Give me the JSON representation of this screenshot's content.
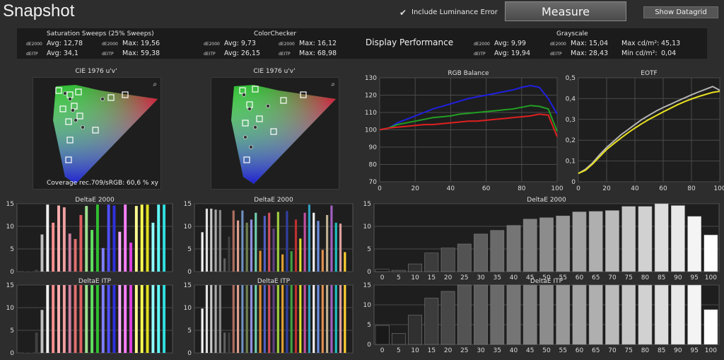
{
  "app": {
    "title": "Snapshot"
  },
  "toolbar": {
    "include_luminance_label": "Include Luminance Error",
    "include_luminance_checked": true,
    "measure_label": "Measure",
    "datagrid_label": "Show Datagrid"
  },
  "stats": {
    "display_performance": "Display Performance",
    "saturation": {
      "title": "Saturation Sweeps (25% Sweeps)",
      "de2000_label": "dE2000",
      "deitp_label": "dEITP",
      "avg_de2000": "Avg: 12,78",
      "max_de2000": "Max: 19,56",
      "avg_deitp": "Avg: 34,1",
      "max_deitp": "Max: 59,38"
    },
    "colorchecker": {
      "title": "ColorChecker",
      "de2000_label": "dE2000",
      "deitp_label": "dEITP",
      "avg_de2000": "Avg: 9,73",
      "max_de2000": "Max: 16,12",
      "avg_deitp": "Avg: 26,15",
      "max_deitp": "Max: 68,98"
    },
    "overall": {
      "de2000_label": "dE2000",
      "deitp_label": "dEITP",
      "avg_de2000": "Avg: 9,99",
      "avg_deitp": "Avg: 19,94"
    },
    "grayscale": {
      "title": "Grayscale",
      "de2000_label": "dE2000",
      "deitp_label": "dEITP",
      "max_de2000": "Max: 15,04",
      "max_deitp": "Max: 28,43",
      "max_cd_label": "Max cd/m²:",
      "max_cd_value": "45,13",
      "min_cd_label": "Min cd/m²:",
      "min_cd_value": "0,04"
    }
  },
  "cie": {
    "title": "CIE 1976 u'v'",
    "coverage_text": "Coverage rec.709/sRGB:  60,6 % xy",
    "zoom_icon": "magnifier-icon"
  },
  "colors": {
    "bg": "#2d2d2d",
    "panel": "#1e1e1e",
    "grid": "#4a4a4a"
  },
  "chart_data": [
    {
      "id": "rgb_balance",
      "type": "line",
      "title": "RGB Balance",
      "x": [
        0,
        5,
        10,
        15,
        20,
        25,
        30,
        35,
        40,
        45,
        50,
        55,
        60,
        65,
        70,
        75,
        80,
        85,
        90,
        95,
        100
      ],
      "xlim": [
        0,
        100
      ],
      "ylim": [
        70,
        130
      ],
      "xticks": [
        0,
        20,
        40,
        60,
        80,
        100
      ],
      "yticks": [
        70,
        80,
        90,
        100,
        110,
        120,
        130
      ],
      "grid": true,
      "series": [
        {
          "color": "#2020e0",
          "values": [
            100,
            101,
            104,
            106,
            108,
            110,
            112,
            113.5,
            115,
            116.5,
            118,
            119,
            120,
            121,
            122,
            123,
            124.5,
            125.5,
            124.5,
            118,
            109
          ]
        },
        {
          "color": "#22a022",
          "values": [
            100,
            101,
            103,
            104,
            105,
            106,
            107,
            107.5,
            108,
            109,
            109.5,
            110,
            110.5,
            111,
            111.5,
            112,
            113,
            114,
            113.5,
            112,
            99
          ]
        },
        {
          "color": "#e02020",
          "values": [
            100,
            101,
            101.5,
            102,
            102.5,
            103,
            103,
            103.5,
            104,
            104.5,
            105,
            105,
            105.5,
            106,
            106.5,
            107,
            107.5,
            108,
            109,
            108.5,
            96
          ]
        }
      ]
    },
    {
      "id": "eotf",
      "type": "line",
      "title": "EOTF",
      "x": [
        0,
        5,
        10,
        15,
        20,
        25,
        30,
        35,
        40,
        45,
        50,
        55,
        60,
        65,
        70,
        75,
        80,
        85,
        90,
        95,
        100
      ],
      "xlim": [
        0,
        100
      ],
      "ylim": [
        0,
        0.5
      ],
      "xticks": [
        0,
        20,
        40,
        60,
        80,
        100
      ],
      "yticks": [
        0,
        0.1,
        0.2,
        0.3,
        0.4,
        0.5
      ],
      "ytick_labels": [
        "0",
        "0,1",
        "0,2",
        "0,3",
        "0,4",
        "0,5"
      ],
      "grid": true,
      "series": [
        {
          "color": "#b4b4b4",
          "values": [
            0.04,
            0.06,
            0.09,
            0.13,
            0.165,
            0.195,
            0.225,
            0.25,
            0.275,
            0.3,
            0.32,
            0.34,
            0.357,
            0.372,
            0.388,
            0.403,
            0.418,
            0.432,
            0.445,
            0.458,
            0.44
          ]
        },
        {
          "color": "#e8e020",
          "values": [
            0.04,
            0.055,
            0.085,
            0.12,
            0.155,
            0.183,
            0.21,
            0.235,
            0.258,
            0.28,
            0.3,
            0.318,
            0.336,
            0.353,
            0.37,
            0.385,
            0.398,
            0.41,
            0.42,
            0.43,
            0.435
          ]
        }
      ]
    },
    {
      "id": "sat_de2000",
      "type": "bar",
      "title": "DeltaE 2000",
      "ylim": [
        0,
        15
      ],
      "yticks": [
        0,
        5,
        10,
        15
      ],
      "colors": [
        "#202020",
        "#202020",
        "#404040",
        "#c0c0c0",
        "#f0f0f0",
        "#ff9090",
        "#ffb0b0",
        "#f0a0a0",
        "#d080a0",
        "#e07070",
        "#e06060",
        "#a0e090",
        "#60e060",
        "#30c030",
        "#8080ff",
        "#5050ff",
        "#3030e0",
        "#ffb0ff",
        "#ff80ff",
        "#e040e0",
        "#ffff90",
        "#ffff50",
        "#e0e020",
        "#90ffff",
        "#60ffff",
        "#30e0e0"
      ],
      "values": [
        0.1,
        0.2,
        0.4,
        8.2,
        14.8,
        10.8,
        14.6,
        14.2,
        8.4,
        7.2,
        12.5,
        14.5,
        9.2,
        14.8,
        5.2,
        14.8,
        14.6,
        8.8,
        14.8,
        6.4,
        14.5,
        14.8,
        14.8,
        10.8,
        14.8,
        14.8
      ]
    },
    {
      "id": "cc_de2000",
      "type": "bar",
      "title": "DeltaE 2000",
      "ylim": [
        0,
        15
      ],
      "yticks": [
        0,
        5,
        10,
        15
      ],
      "colors": [
        "#f5f5f5",
        "#e0e0e0",
        "#c8c8c8",
        "#a8a8a8",
        "#888888",
        "#606060",
        "#404040",
        "#b07060",
        "#e0a090",
        "#7090c0",
        "#708050",
        "#9090e0",
        "#70d0b0",
        "#e09030",
        "#5060c0",
        "#d05060",
        "#604080",
        "#a0d040",
        "#e0a030",
        "#3040a0",
        "#40a040",
        "#c03030",
        "#e0e030",
        "#c050a0",
        "#30a0c0",
        "#f0f0f0",
        "#7090e0",
        "#e09050",
        "#c0b090",
        "#a060c0",
        "#20c0c0",
        "#e0a0a0",
        "#ffd030"
      ],
      "values": [
        8.7,
        13.9,
        13.9,
        13.7,
        13.6,
        2.9,
        7.7,
        13.5,
        11.3,
        13.5,
        10.8,
        11.5,
        13.0,
        4.6,
        12.3,
        13.0,
        9.5,
        13.2,
        3.8,
        13.4,
        4.5,
        11.5,
        7.3,
        13.0,
        14.8,
        13.0,
        11.2,
        4.8,
        12.5,
        14.6,
        10.8,
        10.6,
        4.3
      ]
    },
    {
      "id": "sat_deitp",
      "type": "bar",
      "title": "DeltaE ITP",
      "ylim": [
        0,
        15
      ],
      "yticks": [
        0,
        5,
        10,
        15
      ],
      "colors": [
        "#202020",
        "#202020",
        "#404040",
        "#c0c0c0",
        "#f0f0f0",
        "#ff9090",
        "#ffb0b0",
        "#f0a0a0",
        "#d080a0",
        "#e07070",
        "#e06060",
        "#a0e090",
        "#60e060",
        "#30c030",
        "#8080ff",
        "#5050ff",
        "#3030e0",
        "#ffb0ff",
        "#ff80ff",
        "#e040e0",
        "#ffff90",
        "#ffff50",
        "#e0e020",
        "#90ffff",
        "#60ffff",
        "#30e0e0"
      ],
      "values": [
        0.3,
        0.5,
        4.5,
        9.5,
        15,
        15,
        15,
        15,
        15,
        15,
        15,
        15,
        15,
        15,
        15,
        15,
        15,
        15,
        15,
        15,
        15,
        15,
        15,
        15,
        15,
        15
      ]
    },
    {
      "id": "cc_deitp",
      "type": "bar",
      "title": "DeltaE ITP",
      "ylim": [
        0,
        15
      ],
      "yticks": [
        0,
        5,
        10,
        15
      ],
      "colors": [
        "#f5f5f5",
        "#e0e0e0",
        "#c8c8c8",
        "#a8a8a8",
        "#888888",
        "#606060",
        "#404040",
        "#b07060",
        "#e0a090",
        "#7090c0",
        "#708050",
        "#9090e0",
        "#70d0b0",
        "#e09030",
        "#5060c0",
        "#d05060",
        "#604080",
        "#a0d040",
        "#e0a030",
        "#3040a0",
        "#40a040",
        "#c03030",
        "#e0e030",
        "#c050a0",
        "#30a0c0",
        "#f0f0f0",
        "#7090e0",
        "#e09050",
        "#c0b090",
        "#a060c0",
        "#20c0c0",
        "#e0a0a0",
        "#ffd030"
      ],
      "values": [
        9.8,
        15,
        15,
        15,
        15,
        4.5,
        4.5,
        15,
        15,
        15,
        15,
        15,
        15,
        15,
        15,
        15,
        15,
        15,
        15,
        15,
        15,
        15,
        15,
        15,
        15,
        15,
        15,
        15,
        15,
        15,
        15,
        15,
        15
      ]
    },
    {
      "id": "gs_de2000",
      "type": "bar",
      "title": "DeltaE 2000",
      "ylim": [
        0,
        15
      ],
      "yticks": [
        0,
        5,
        10,
        15
      ],
      "categories": [
        "0",
        "5",
        "10",
        "15",
        "20",
        "25",
        "30",
        "35",
        "40",
        "45",
        "50",
        "55",
        "60",
        "65",
        "70",
        "75",
        "80",
        "85",
        "90",
        "95",
        "100"
      ],
      "values": [
        0.5,
        0.3,
        1.7,
        4.1,
        5.2,
        6.1,
        8.3,
        9.1,
        10.2,
        11.6,
        11.9,
        12.3,
        13.2,
        13.3,
        13.5,
        14.4,
        14.4,
        15.0,
        14.6,
        12.2,
        8.1
      ]
    },
    {
      "id": "gs_deitp",
      "type": "bar",
      "title": "DeltaE ITP",
      "ylim": [
        0,
        15
      ],
      "yticks": [
        0,
        5,
        10,
        15
      ],
      "categories": [
        "0",
        "5",
        "10",
        "15",
        "20",
        "25",
        "30",
        "35",
        "40",
        "45",
        "50",
        "55",
        "60",
        "65",
        "70",
        "75",
        "80",
        "85",
        "90",
        "95",
        "100"
      ],
      "values": [
        4.8,
        2.8,
        7.4,
        11.7,
        13.4,
        15,
        15,
        15,
        15,
        15,
        15,
        15,
        15,
        15,
        15,
        15,
        15,
        15,
        15,
        15,
        8.8
      ]
    }
  ]
}
